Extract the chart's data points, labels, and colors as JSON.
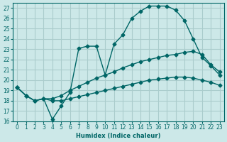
{
  "xlabel": "Humidex (Indice chaleur)",
  "ylabel": "",
  "background_color": "#cce8e8",
  "grid_color": "#aacccc",
  "line_color": "#006666",
  "xlim": [
    -0.5,
    23.5
  ],
  "ylim": [
    16,
    27.5
  ],
  "yticks": [
    16,
    17,
    18,
    19,
    20,
    21,
    22,
    23,
    24,
    25,
    26,
    27
  ],
  "xticks": [
    0,
    1,
    2,
    3,
    4,
    5,
    6,
    7,
    8,
    9,
    10,
    11,
    12,
    13,
    14,
    15,
    16,
    17,
    18,
    19,
    20,
    21,
    22,
    23
  ],
  "line1_x": [
    0,
    1,
    2,
    3,
    4,
    5,
    6,
    7,
    8,
    9,
    10,
    11,
    12,
    13,
    14,
    15,
    16,
    17,
    18,
    19,
    20,
    21,
    22,
    23
  ],
  "line1_y": [
    19.3,
    18.5,
    18.0,
    18.2,
    16.2,
    17.5,
    18.8,
    23.1,
    23.3,
    23.3,
    20.5,
    23.5,
    24.4,
    26.0,
    26.7,
    27.2,
    27.2,
    27.2,
    26.8,
    25.8,
    24.0,
    22.2,
    21.4,
    20.5
  ],
  "line2_x": [
    0,
    1,
    2,
    3,
    4,
    5,
    6,
    7,
    8,
    9,
    10,
    11,
    12,
    13,
    14,
    15,
    16,
    17,
    18,
    19,
    20,
    21,
    22,
    23
  ],
  "line2_y": [
    19.3,
    18.5,
    18.0,
    18.2,
    18.2,
    18.5,
    19.0,
    19.4,
    19.8,
    20.2,
    20.5,
    20.8,
    21.2,
    21.5,
    21.8,
    22.0,
    22.2,
    22.4,
    22.5,
    22.7,
    22.8,
    22.5,
    21.5,
    20.8
  ],
  "line3_x": [
    0,
    1,
    2,
    3,
    4,
    5,
    6,
    7,
    8,
    9,
    10,
    11,
    12,
    13,
    14,
    15,
    16,
    17,
    18,
    19,
    20,
    21,
    22,
    23
  ],
  "line3_y": [
    19.3,
    18.5,
    18.0,
    18.2,
    18.0,
    18.0,
    18.2,
    18.4,
    18.6,
    18.8,
    19.0,
    19.2,
    19.4,
    19.6,
    19.8,
    20.0,
    20.1,
    20.2,
    20.3,
    20.3,
    20.2,
    20.0,
    19.8,
    19.5
  ]
}
